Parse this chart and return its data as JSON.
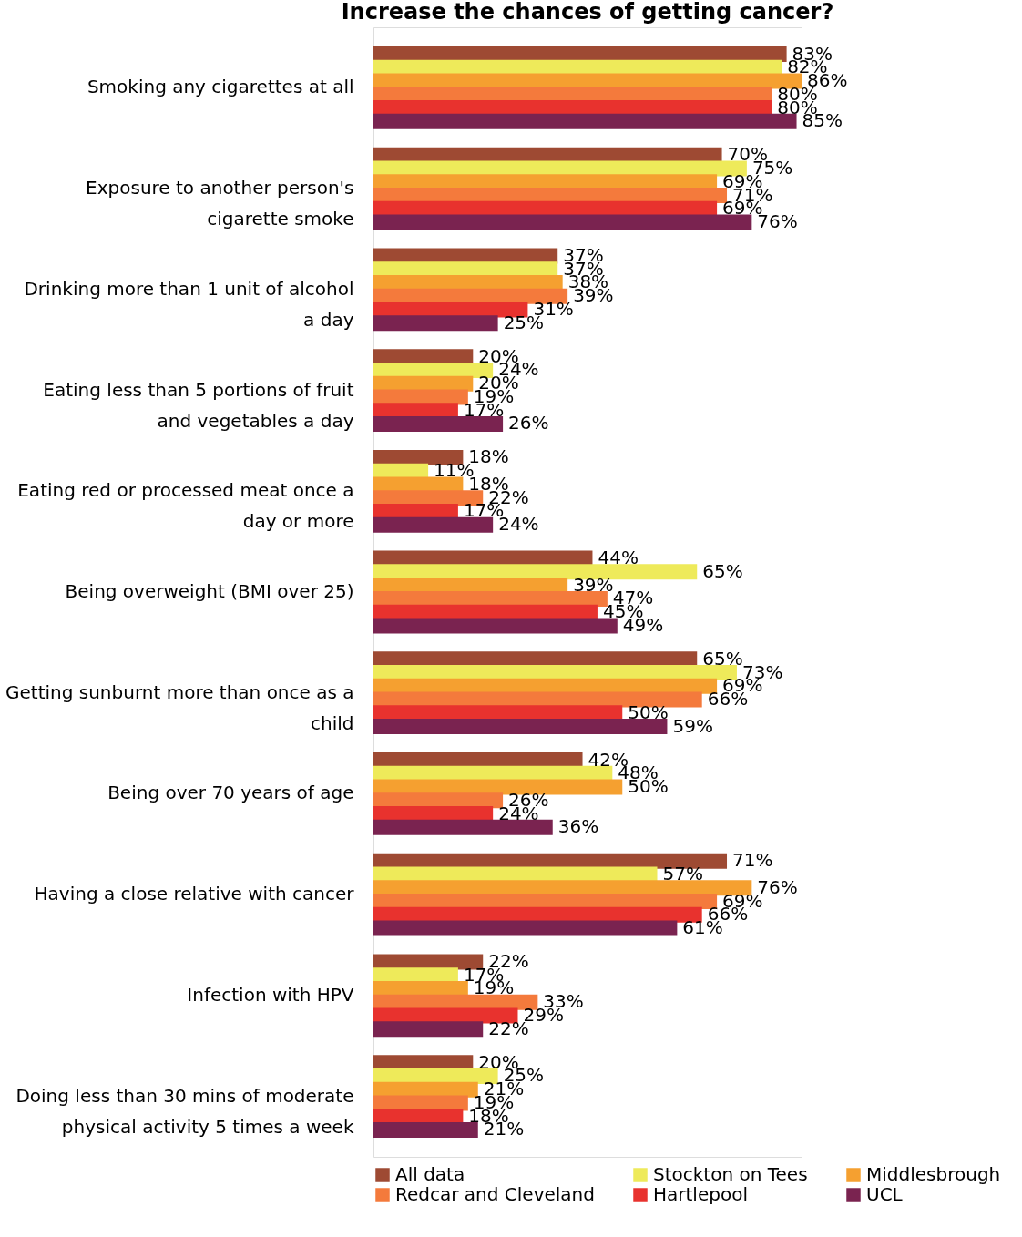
{
  "chart_data": {
    "type": "bar",
    "orientation": "horizontal",
    "title": "Increase the chances of getting cancer?",
    "legend": "bottom",
    "grid": false,
    "categories": [
      "Smoking any cigarettes at all",
      "Exposure to another person's cigarette smoke",
      "Drinking more than 1 unit of alcohol a day",
      "Eating less than 5 portions of fruit and vegetables a day",
      "Eating red or processed meat once a day or more",
      "Being overweight (BMI over 25)",
      "Getting sunburnt more than once as a child",
      "Being over 70 years of age",
      "Having a close relative with cancer",
      "Infection with HPV",
      "Doing less than 30 mins of moderate physical activity 5 times a week"
    ],
    "series": [
      {
        "name": "All data",
        "color": "#9e4a33",
        "values": [
          83,
          70,
          37,
          20,
          18,
          44,
          65,
          42,
          71,
          22,
          20
        ],
        "value_labels": [
          "83%",
          "70%",
          "37%",
          "20%",
          "18%",
          "44%",
          "65%",
          "42%",
          "71%",
          "22%",
          "20%"
        ]
      },
      {
        "name": "Stockton on Tees",
        "color": "#eeea5a",
        "values": [
          82,
          75,
          37,
          24,
          11,
          65,
          73,
          48,
          57,
          17,
          25
        ],
        "value_labels": [
          "82%",
          "75%",
          "37%",
          "24%",
          "11%",
          "65%",
          "73%",
          "48%",
          "57%",
          "17%",
          "25%"
        ]
      },
      {
        "name": "Middlesbrough",
        "color": "#f5a030",
        "values": [
          86,
          69,
          38,
          20,
          18,
          39,
          69,
          50,
          76,
          19,
          21
        ],
        "value_labels": [
          "86%",
          "69%",
          "38%",
          "20%",
          "18%",
          "39%",
          "69%",
          "50%",
          "76%",
          "19%",
          "21%"
        ]
      },
      {
        "name": "Redcar and Cleveland",
        "color": "#f47a3c",
        "values": [
          80,
          71,
          39,
          19,
          22,
          47,
          66,
          26,
          69,
          33,
          19
        ],
        "value_labels": [
          "80%",
          "71%",
          "39%",
          "19%",
          "22%",
          "47%",
          "66%",
          "26%",
          "69%",
          "33%",
          "19%"
        ]
      },
      {
        "name": "Hartlepool",
        "color": "#e8322e",
        "values": [
          80,
          69,
          31,
          17,
          17,
          45,
          50,
          24,
          66,
          29,
          18
        ],
        "value_labels": [
          "80%",
          "69%",
          "31%",
          "17%",
          "17%",
          "45%",
          "50%",
          "24%",
          "66%",
          "29%",
          "18%"
        ]
      },
      {
        "name": "UCL",
        "color": "#7a2350",
        "values": [
          85,
          76,
          25,
          26,
          24,
          49,
          59,
          36,
          61,
          22,
          21
        ],
        "value_labels": [
          "85%",
          "76%",
          "25%",
          "26%",
          "24%",
          "49%",
          "59%",
          "36%",
          "61%",
          "22%",
          "21%"
        ]
      }
    ]
  }
}
